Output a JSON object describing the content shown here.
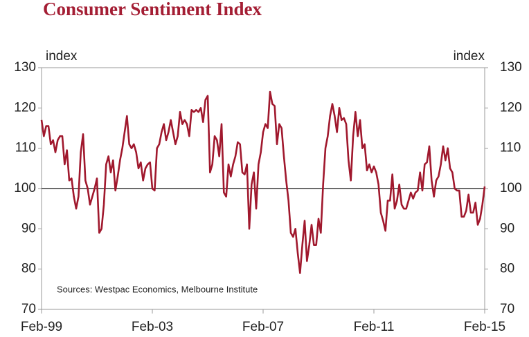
{
  "chart_data": {
    "type": "line",
    "title": "Consumer Sentiment Index",
    "ylabel": "index",
    "y2label": "index",
    "annotation": "Sources: Westpac Economics, Melbourne Institute",
    "x": [
      "1999-02",
      "1999-03",
      "1999-04",
      "1999-05",
      "1999-06",
      "1999-07",
      "1999-08",
      "1999-09",
      "1999-10",
      "1999-11",
      "1999-12",
      "2000-01",
      "2000-02",
      "2000-03",
      "2000-04",
      "2000-05",
      "2000-06",
      "2000-07",
      "2000-08",
      "2000-09",
      "2000-10",
      "2000-11",
      "2000-12",
      "2001-01",
      "2001-02",
      "2001-03",
      "2001-04",
      "2001-05",
      "2001-06",
      "2001-07",
      "2001-08",
      "2001-09",
      "2001-10",
      "2001-11",
      "2001-12",
      "2002-01",
      "2002-02",
      "2002-03",
      "2002-04",
      "2002-05",
      "2002-06",
      "2002-07",
      "2002-08",
      "2002-09",
      "2002-10",
      "2002-11",
      "2002-12",
      "2003-01",
      "2003-02",
      "2003-03",
      "2003-04",
      "2003-05",
      "2003-06",
      "2003-07",
      "2003-08",
      "2003-09",
      "2003-10",
      "2003-11",
      "2003-12",
      "2004-01",
      "2004-02",
      "2004-03",
      "2004-04",
      "2004-05",
      "2004-06",
      "2004-07",
      "2004-08",
      "2004-09",
      "2004-10",
      "2004-11",
      "2004-12",
      "2005-01",
      "2005-02",
      "2005-03",
      "2005-04",
      "2005-05",
      "2005-06",
      "2005-07",
      "2005-08",
      "2005-09",
      "2005-10",
      "2005-11",
      "2005-12",
      "2006-01",
      "2006-02",
      "2006-03",
      "2006-04",
      "2006-05",
      "2006-06",
      "2006-07",
      "2006-08",
      "2006-09",
      "2006-10",
      "2006-11",
      "2006-12",
      "2007-01",
      "2007-02",
      "2007-03",
      "2007-04",
      "2007-05",
      "2007-06",
      "2007-07",
      "2007-08",
      "2007-09",
      "2007-10",
      "2007-11",
      "2007-12",
      "2008-01",
      "2008-02",
      "2008-03",
      "2008-04",
      "2008-05",
      "2008-06",
      "2008-07",
      "2008-08",
      "2008-09",
      "2008-10",
      "2008-11",
      "2008-12",
      "2009-01",
      "2009-02",
      "2009-03",
      "2009-04",
      "2009-05",
      "2009-06",
      "2009-07",
      "2009-08",
      "2009-09",
      "2009-10",
      "2009-11",
      "2009-12",
      "2010-01",
      "2010-02",
      "2010-03",
      "2010-04",
      "2010-05",
      "2010-06",
      "2010-07",
      "2010-08",
      "2010-09",
      "2010-10",
      "2010-11",
      "2010-12",
      "2011-01",
      "2011-02",
      "2011-03",
      "2011-04",
      "2011-05",
      "2011-06",
      "2011-07",
      "2011-08",
      "2011-09",
      "2011-10",
      "2011-11",
      "2011-12",
      "2012-01",
      "2012-02",
      "2012-03",
      "2012-04",
      "2012-05",
      "2012-06",
      "2012-07",
      "2012-08",
      "2012-09",
      "2012-10",
      "2012-11",
      "2012-12",
      "2013-01",
      "2013-02",
      "2013-03",
      "2013-04",
      "2013-05",
      "2013-06",
      "2013-07",
      "2013-08",
      "2013-09",
      "2013-10",
      "2013-11",
      "2013-12",
      "2014-01",
      "2014-02",
      "2014-03",
      "2014-04",
      "2014-05",
      "2014-06",
      "2014-07",
      "2014-08",
      "2014-09",
      "2014-10",
      "2014-11",
      "2014-12",
      "2015-01",
      "2015-02"
    ],
    "series": [
      {
        "name": "Consumer Sentiment Index",
        "color": "#a0182d",
        "values": [
          117,
          113,
          115.5,
          115.5,
          111,
          112,
          109,
          112,
          113,
          113,
          106,
          109.5,
          102,
          102.5,
          98,
          95,
          98,
          109,
          113.5,
          102,
          100,
          96,
          98,
          100,
          102.5,
          89,
          90,
          96,
          106,
          108,
          104,
          107,
          99.5,
          103,
          107,
          110,
          114,
          118,
          111,
          110,
          111,
          109,
          105,
          106.5,
          102,
          105,
          106,
          106.5,
          100,
          99.5,
          110,
          111,
          114,
          116,
          112,
          114,
          117,
          114,
          111,
          113,
          119,
          116,
          117,
          116,
          113,
          119.5,
          119,
          119.5,
          119,
          120,
          116.5,
          122,
          123,
          104,
          106,
          113,
          112,
          108,
          116,
          99,
          98,
          106,
          103,
          106,
          108,
          111.5,
          111,
          104,
          103.5,
          106,
          90,
          101,
          104,
          95,
          106,
          109,
          114,
          116,
          115,
          124,
          121,
          120.5,
          111,
          116,
          115,
          108,
          102,
          97,
          89,
          88,
          90,
          84,
          79,
          86,
          92,
          82,
          86,
          91,
          86,
          86,
          92.5,
          89,
          101,
          110,
          113,
          118,
          121,
          118,
          114,
          120,
          117,
          117.5,
          116,
          107,
          102,
          113,
          119,
          113,
          117,
          110,
          111,
          104.5,
          106,
          104,
          105.5,
          104,
          101,
          94,
          92,
          89.5,
          97,
          97,
          103.5,
          95,
          97,
          101,
          96,
          95,
          95,
          97,
          99,
          97.5,
          99,
          99.5,
          104,
          99.5,
          106,
          106.5,
          110.5,
          102,
          98,
          102,
          103,
          106,
          110.5,
          107,
          110,
          105,
          104,
          100,
          99.5,
          99.5,
          93,
          93,
          94.5,
          98.5,
          94,
          94,
          96.5,
          91,
          92.5,
          96,
          100.5
        ]
      }
    ],
    "xticks": [
      {
        "value": "1999-02",
        "label": "Feb-99"
      },
      {
        "value": "2003-02",
        "label": "Feb-03"
      },
      {
        "value": "2007-02",
        "label": "Feb-07"
      },
      {
        "value": "2011-02",
        "label": "Feb-11"
      },
      {
        "value": "2015-02",
        "label": "Feb-15"
      }
    ],
    "ylim": [
      70,
      130
    ],
    "yticks": [
      70,
      80,
      90,
      100,
      110,
      120,
      130
    ],
    "y2lim": [
      70,
      130
    ],
    "y2ticks": [
      70,
      80,
      90,
      100,
      110,
      120,
      130
    ],
    "reference_line": 100,
    "grid": false
  }
}
